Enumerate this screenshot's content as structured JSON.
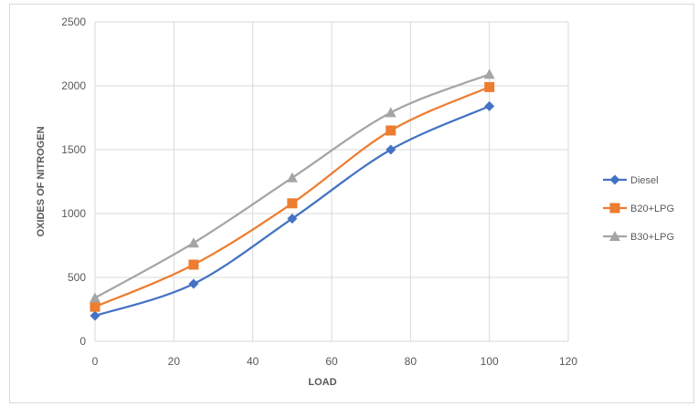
{
  "chart_data": {
    "type": "line",
    "title": "",
    "xlabel": "LOAD",
    "ylabel": "OXIDES OF NITROGEN",
    "xlim": [
      0,
      120
    ],
    "ylim": [
      0,
      2500
    ],
    "xticks": [
      0,
      20,
      40,
      60,
      80,
      100,
      120
    ],
    "yticks": [
      0,
      500,
      1000,
      1500,
      2000,
      2500
    ],
    "grid": "vertical and horizontal major gridlines",
    "legend_position": "right",
    "smooth": true,
    "x": [
      0,
      25,
      50,
      75,
      100
    ],
    "series": [
      {
        "name": "Diesel",
        "values": [
          200,
          450,
          960,
          1500,
          1840
        ],
        "color": "#4472c4",
        "marker": "diamond"
      },
      {
        "name": "B20+LPG",
        "values": [
          270,
          600,
          1080,
          1650,
          1990
        ],
        "color": "#ed7d31",
        "marker": "square"
      },
      {
        "name": "B30+LPG",
        "values": [
          340,
          770,
          1280,
          1790,
          2090
        ],
        "color": "#a5a5a5",
        "marker": "triangle"
      }
    ]
  }
}
